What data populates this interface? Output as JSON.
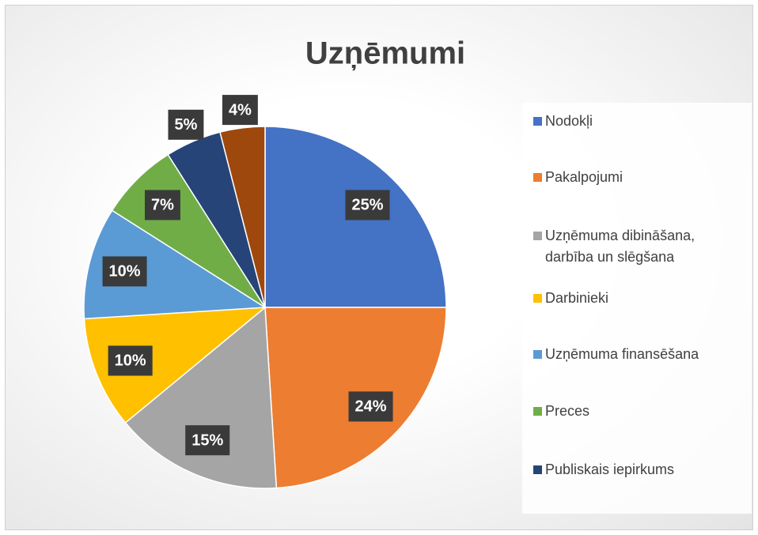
{
  "chart_data": {
    "type": "pie",
    "title": "Uzņēmumi",
    "categories": [
      "Nodokļi",
      "Pakalpojumi",
      "Uzņēmuma dibināšana, darbība un slēgšana",
      "Darbinieki",
      "Uzņēmuma finansēšana",
      "Preces",
      "Publiskais iepirkums",
      null
    ],
    "values": [
      25,
      24,
      15,
      10,
      10,
      7,
      5,
      4
    ],
    "value_labels": [
      "25%",
      "24%",
      "15%",
      "10%",
      "10%",
      "7%",
      "5%",
      "4%"
    ],
    "colors": [
      "#4472c4",
      "#ed7d31",
      "#a5a5a5",
      "#ffc000",
      "#5b9bd5",
      "#70ad47",
      "#264478",
      "#9e480e"
    ],
    "legend": "right"
  }
}
